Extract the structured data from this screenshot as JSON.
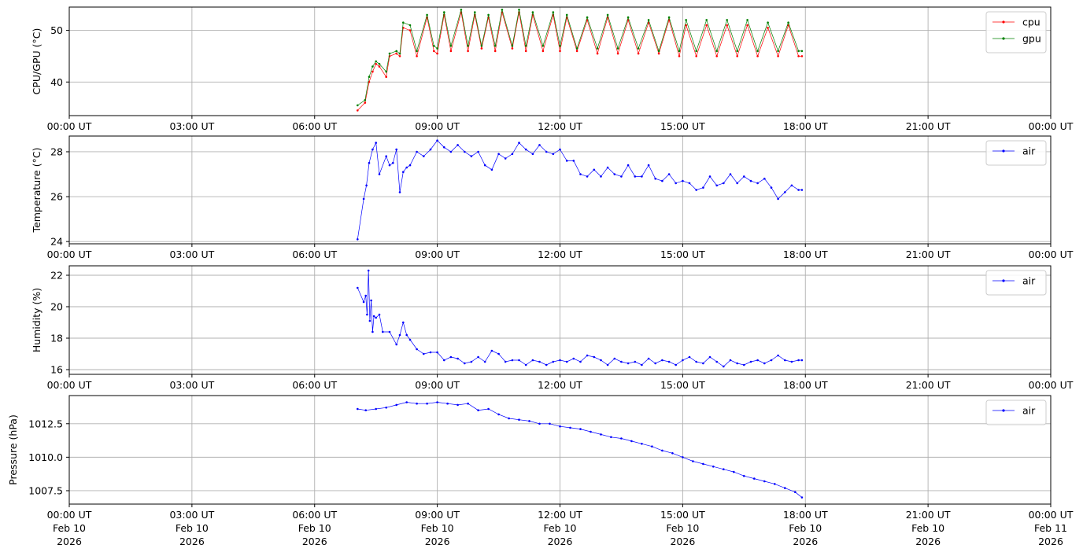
{
  "chart_data": [
    {
      "type": "line",
      "ylabel": "CPU/GPU (°C)",
      "ylim": [
        33.5,
        54.5
      ],
      "yticks": [
        40,
        50
      ],
      "xlim": [
        "2026-02-10T00:00",
        "2026-02-11T00:00"
      ],
      "xtick_labels": [
        "00:00 UT",
        "03:00 UT",
        "06:00 UT",
        "09:00 UT",
        "12:00 UT",
        "15:00 UT",
        "18:00 UT",
        "21:00 UT",
        "00:00 UT"
      ],
      "grid": true,
      "legend": "upper-right",
      "series": [
        {
          "name": "cpu",
          "color": "#ff0000",
          "x": [
            "07:03",
            "07:14",
            "07:20",
            "07:25",
            "07:30",
            "07:35",
            "07:45",
            "07:50",
            "08:00",
            "08:05",
            "08:10",
            "08:20",
            "08:30",
            "08:45",
            "08:55",
            "09:00",
            "09:10",
            "09:20",
            "09:35",
            "09:45",
            "09:55",
            "10:05",
            "10:15",
            "10:25",
            "10:35",
            "10:50",
            "11:00",
            "11:10",
            "11:20",
            "11:35",
            "11:50",
            "12:00",
            "12:10",
            "12:25",
            "12:40",
            "12:55",
            "13:10",
            "13:25",
            "13:40",
            "13:55",
            "14:10",
            "14:25",
            "14:40",
            "14:55",
            "15:05",
            "15:20",
            "15:35",
            "15:50",
            "16:05",
            "16:20",
            "16:35",
            "16:50",
            "17:05",
            "17:20",
            "17:35",
            "17:50",
            "17:55"
          ],
          "values": [
            34.5,
            36,
            40,
            42,
            43.5,
            43,
            41,
            45,
            45.5,
            45,
            50.5,
            50,
            45,
            52.5,
            46,
            45.5,
            53,
            46,
            53.5,
            46,
            53,
            46.5,
            52.5,
            46,
            53.5,
            46.5,
            53.5,
            46,
            53,
            46,
            53,
            46,
            52.5,
            46,
            52,
            45.5,
            52.5,
            45.5,
            52,
            45.5,
            51.5,
            45.5,
            52,
            45,
            51,
            45,
            51,
            45,
            51,
            45,
            51,
            45,
            50.5,
            45,
            51,
            45,
            45
          ]
        },
        {
          "name": "gpu",
          "color": "#008000",
          "x": [
            "07:03",
            "07:14",
            "07:20",
            "07:25",
            "07:30",
            "07:35",
            "07:45",
            "07:50",
            "08:00",
            "08:05",
            "08:10",
            "08:20",
            "08:30",
            "08:45",
            "08:55",
            "09:00",
            "09:10",
            "09:20",
            "09:35",
            "09:45",
            "09:55",
            "10:05",
            "10:15",
            "10:25",
            "10:35",
            "10:50",
            "11:00",
            "11:10",
            "11:20",
            "11:35",
            "11:50",
            "12:00",
            "12:10",
            "12:25",
            "12:40",
            "12:55",
            "13:10",
            "13:25",
            "13:40",
            "13:55",
            "14:10",
            "14:25",
            "14:40",
            "14:55",
            "15:05",
            "15:20",
            "15:35",
            "15:50",
            "16:05",
            "16:20",
            "16:35",
            "16:50",
            "17:05",
            "17:20",
            "17:35",
            "17:50",
            "17:55"
          ],
          "values": [
            35.5,
            36.5,
            41,
            43,
            44,
            43.5,
            42,
            45.5,
            46,
            45.5,
            51.5,
            51,
            46,
            53,
            47,
            46.5,
            53.5,
            47,
            54,
            47,
            53.5,
            47,
            53,
            47,
            54,
            47,
            54,
            47,
            53.5,
            47,
            53.5,
            47,
            53,
            46.5,
            52.5,
            46.5,
            53,
            46.5,
            52.5,
            46.5,
            52,
            46,
            52.5,
            46,
            52,
            46,
            52,
            46,
            52,
            46,
            52,
            46,
            51.5,
            46,
            51.5,
            46,
            46
          ]
        }
      ]
    },
    {
      "type": "line",
      "ylabel": "Temperature (°C)",
      "ylim": [
        23.9,
        28.7
      ],
      "yticks": [
        24,
        26,
        28
      ],
      "xlim": [
        "2026-02-10T00:00",
        "2026-02-11T00:00"
      ],
      "xtick_labels": [
        "00:00 UT",
        "03:00 UT",
        "06:00 UT",
        "09:00 UT",
        "12:00 UT",
        "15:00 UT",
        "18:00 UT",
        "21:00 UT",
        "00:00 UT"
      ],
      "grid": true,
      "legend": "upper-right",
      "series": [
        {
          "name": "air",
          "color": "#0000ff",
          "x": [
            "07:03",
            "07:12",
            "07:16",
            "07:20",
            "07:25",
            "07:30",
            "07:35",
            "07:45",
            "07:50",
            "07:55",
            "08:00",
            "08:05",
            "08:10",
            "08:15",
            "08:20",
            "08:30",
            "08:40",
            "08:50",
            "09:00",
            "09:10",
            "09:20",
            "09:30",
            "09:40",
            "09:50",
            "10:00",
            "10:10",
            "10:20",
            "10:30",
            "10:40",
            "10:50",
            "11:00",
            "11:10",
            "11:20",
            "11:30",
            "11:40",
            "11:50",
            "12:00",
            "12:10",
            "12:20",
            "12:30",
            "12:40",
            "12:50",
            "13:00",
            "13:10",
            "13:20",
            "13:30",
            "13:40",
            "13:50",
            "14:00",
            "14:10",
            "14:20",
            "14:30",
            "14:40",
            "14:50",
            "15:00",
            "15:10",
            "15:20",
            "15:30",
            "15:40",
            "15:50",
            "16:00",
            "16:10",
            "16:20",
            "16:30",
            "16:40",
            "16:50",
            "17:00",
            "17:10",
            "17:20",
            "17:30",
            "17:40",
            "17:50",
            "17:55"
          ],
          "values": [
            24.1,
            25.9,
            26.5,
            27.5,
            28.1,
            28.4,
            27.0,
            27.8,
            27.4,
            27.5,
            28.1,
            26.2,
            27.1,
            27.3,
            27.4,
            28.0,
            27.8,
            28.1,
            28.5,
            28.2,
            28.0,
            28.3,
            28.0,
            27.8,
            28.0,
            27.4,
            27.2,
            27.9,
            27.7,
            27.9,
            28.4,
            28.1,
            27.9,
            28.3,
            28.0,
            27.9,
            28.1,
            27.6,
            27.6,
            27.0,
            26.9,
            27.2,
            26.9,
            27.3,
            27.0,
            26.9,
            27.4,
            26.9,
            26.9,
            27.4,
            26.8,
            26.7,
            27.0,
            26.6,
            26.7,
            26.6,
            26.3,
            26.4,
            26.9,
            26.5,
            26.6,
            27.0,
            26.6,
            26.9,
            26.7,
            26.6,
            26.8,
            26.4,
            25.9,
            26.2,
            26.5,
            26.3,
            26.3
          ]
        }
      ]
    },
    {
      "type": "line",
      "ylabel": "Humidity (%)",
      "ylim": [
        15.7,
        22.6
      ],
      "yticks": [
        16,
        18,
        20,
        22
      ],
      "xlim": [
        "2026-02-10T00:00",
        "2026-02-11T00:00"
      ],
      "xtick_labels": [
        "00:00 UT",
        "03:00 UT",
        "06:00 UT",
        "09:00 UT",
        "12:00 UT",
        "15:00 UT",
        "18:00 UT",
        "21:00 UT",
        "00:00 UT"
      ],
      "grid": true,
      "legend": "upper-right",
      "series": [
        {
          "name": "air",
          "color": "#0000ff",
          "x": [
            "07:03",
            "07:12",
            "07:15",
            "07:17",
            "07:19",
            "07:21",
            "07:23",
            "07:25",
            "07:27",
            "07:30",
            "07:35",
            "07:40",
            "07:50",
            "08:00",
            "08:05",
            "08:10",
            "08:15",
            "08:20",
            "08:30",
            "08:40",
            "08:50",
            "09:00",
            "09:10",
            "09:20",
            "09:30",
            "09:40",
            "09:50",
            "10:00",
            "10:10",
            "10:20",
            "10:30",
            "10:40",
            "10:50",
            "11:00",
            "11:10",
            "11:20",
            "11:30",
            "11:40",
            "11:50",
            "12:00",
            "12:10",
            "12:20",
            "12:30",
            "12:40",
            "12:50",
            "13:00",
            "13:10",
            "13:20",
            "13:30",
            "13:40",
            "13:50",
            "14:00",
            "14:10",
            "14:20",
            "14:30",
            "14:40",
            "14:50",
            "15:00",
            "15:10",
            "15:20",
            "15:30",
            "15:40",
            "15:50",
            "16:00",
            "16:10",
            "16:20",
            "16:30",
            "16:40",
            "16:50",
            "17:00",
            "17:10",
            "17:20",
            "17:30",
            "17:40",
            "17:50",
            "17:55"
          ],
          "values": [
            21.2,
            20.3,
            20.7,
            19.5,
            22.3,
            19.1,
            20.4,
            18.4,
            19.4,
            19.3,
            19.5,
            18.4,
            18.4,
            17.6,
            18.2,
            19.0,
            18.2,
            17.9,
            17.3,
            17.0,
            17.1,
            17.1,
            16.6,
            16.8,
            16.7,
            16.4,
            16.5,
            16.8,
            16.5,
            17.2,
            17.0,
            16.5,
            16.6,
            16.6,
            16.3,
            16.6,
            16.5,
            16.3,
            16.5,
            16.6,
            16.5,
            16.7,
            16.5,
            16.9,
            16.8,
            16.6,
            16.3,
            16.7,
            16.5,
            16.4,
            16.5,
            16.3,
            16.7,
            16.4,
            16.6,
            16.5,
            16.3,
            16.6,
            16.8,
            16.5,
            16.4,
            16.8,
            16.5,
            16.2,
            16.6,
            16.4,
            16.3,
            16.5,
            16.6,
            16.4,
            16.6,
            16.9,
            16.6,
            16.5,
            16.6,
            16.6
          ]
        }
      ]
    },
    {
      "type": "line",
      "ylabel": "Pressure (hPa)",
      "ylim": [
        1006.5,
        1014.6
      ],
      "yticks": [
        1007.5,
        1010.0,
        1012.5
      ],
      "ytick_labels": [
        "1007.5",
        "1010.0",
        "1012.5"
      ],
      "xlim": [
        "2026-02-10T00:00",
        "2026-02-11T00:00"
      ],
      "xtick_labels": [
        "00:00 UT\nFeb 10\n2026",
        "03:00 UT\nFeb 10\n2026",
        "06:00 UT\nFeb 10\n2026",
        "09:00 UT\nFeb 10\n2026",
        "12:00 UT\nFeb 10\n2026",
        "15:00 UT\nFeb 10\n2026",
        "18:00 UT\nFeb 10\n2026",
        "21:00 UT\nFeb 10\n2026",
        "00:00 UT\nFeb 11\n2026"
      ],
      "grid": true,
      "legend": "upper-right",
      "series": [
        {
          "name": "air",
          "color": "#0000ff",
          "x": [
            "07:03",
            "07:15",
            "07:30",
            "07:45",
            "08:00",
            "08:15",
            "08:30",
            "08:45",
            "09:00",
            "09:15",
            "09:30",
            "09:45",
            "10:00",
            "10:15",
            "10:30",
            "10:45",
            "11:00",
            "11:15",
            "11:30",
            "11:45",
            "12:00",
            "12:15",
            "12:30",
            "12:45",
            "13:00",
            "13:15",
            "13:30",
            "13:45",
            "14:00",
            "14:15",
            "14:30",
            "14:45",
            "15:00",
            "15:15",
            "15:30",
            "15:45",
            "16:00",
            "16:15",
            "16:30",
            "16:45",
            "17:00",
            "17:15",
            "17:30",
            "17:45",
            "17:55"
          ],
          "values": [
            1013.6,
            1013.5,
            1013.6,
            1013.7,
            1013.9,
            1014.1,
            1014.0,
            1014.0,
            1014.1,
            1014.0,
            1013.9,
            1014.0,
            1013.5,
            1013.6,
            1013.2,
            1012.9,
            1012.8,
            1012.7,
            1012.5,
            1012.5,
            1012.3,
            1012.2,
            1012.1,
            1011.9,
            1011.7,
            1011.5,
            1011.4,
            1011.2,
            1011.0,
            1010.8,
            1010.5,
            1010.3,
            1010.0,
            1009.7,
            1009.5,
            1009.3,
            1009.1,
            1008.9,
            1008.6,
            1008.4,
            1008.2,
            1008.0,
            1007.7,
            1007.4,
            1007.0
          ]
        }
      ]
    }
  ]
}
